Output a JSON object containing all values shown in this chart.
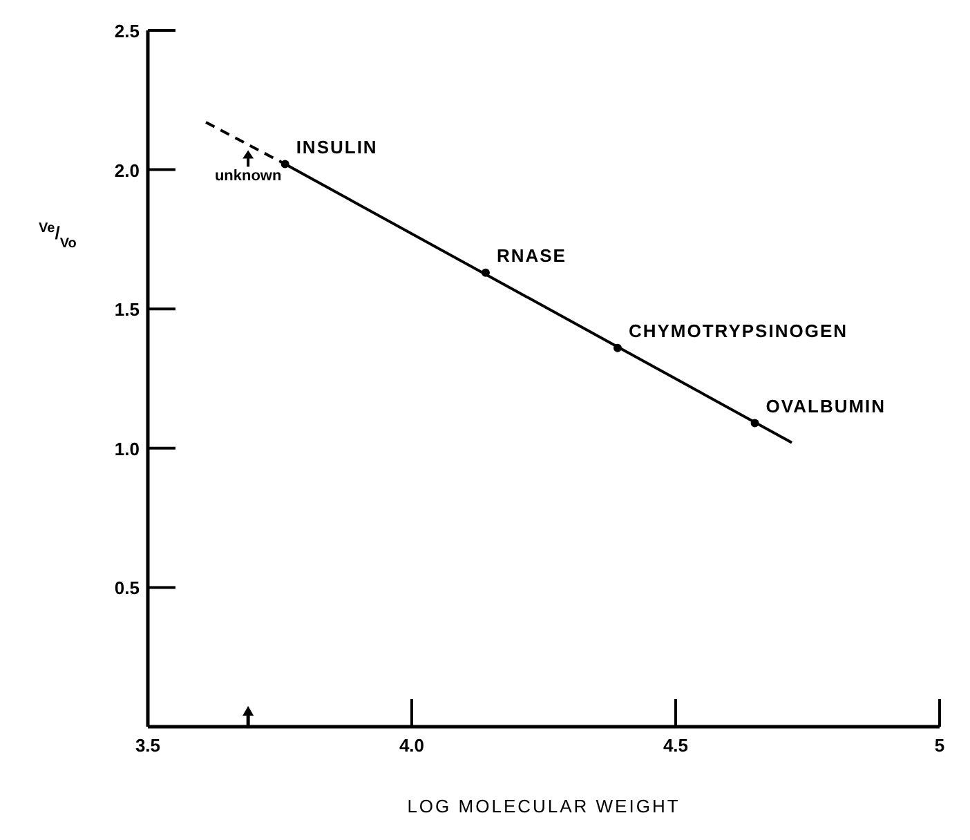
{
  "chart_data": {
    "type": "scatter",
    "xlabel": "LOG MOLECULAR WEIGHT",
    "ylabel": "$^{Ve}$/$_{Vo}$",
    "xlim": [
      3.5,
      5
    ],
    "ylim": [
      0,
      2.5
    ],
    "xticks": [
      3.5,
      {
        "value": 4,
        "label": "4.0"
      },
      4.5,
      5
    ],
    "yticks": [
      0.5,
      {
        "value": 1,
        "label": "1.0"
      },
      1.5,
      {
        "value": 2,
        "label": "2.0"
      },
      2.5
    ],
    "grid": false,
    "series": [
      {
        "type": "line",
        "color": "#000000",
        "line_style": "solid",
        "x": [
          3.76,
          4.72
        ],
        "values": [
          2.02,
          1.02
        ]
      },
      {
        "type": "line",
        "color": "#000000",
        "line_style": "dashed",
        "x": [
          3.61,
          3.76
        ],
        "values": [
          2.17,
          2.02
        ]
      },
      {
        "color": "#000000",
        "marker": "circle",
        "x": [
          3.76,
          4.14,
          4.39,
          4.65
        ],
        "values": [
          2.02,
          1.63,
          1.36,
          1.09
        ]
      }
    ],
    "annotations": [
      {
        "text": "INSULIN",
        "x": 3.76,
        "y": 2.02
      },
      {
        "text": "RNASE",
        "x": 4.14,
        "y": 1.63
      },
      {
        "text": "CHYMOTRYPSINOGEN",
        "x": 4.39,
        "y": 1.36
      },
      {
        "text": "OVALBUMIN",
        "x": 4.65,
        "y": 1.09
      },
      {
        "text": "unknown",
        "x": 3.69,
        "y": 2.07
      }
    ]
  }
}
